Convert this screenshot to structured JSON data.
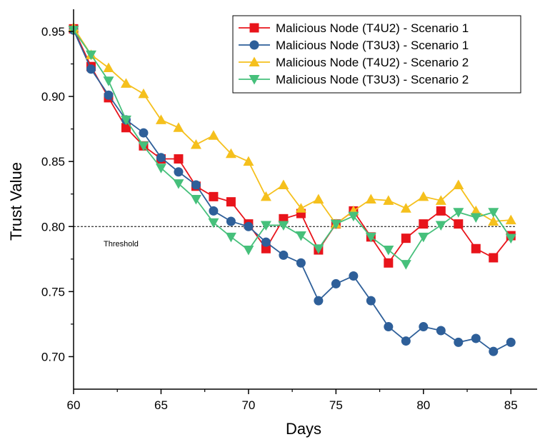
{
  "chart_data": {
    "type": "line",
    "xlabel": "Days",
    "ylabel": "Trust Value",
    "xlim": [
      60,
      86.5
    ],
    "ylim": [
      0.675,
      0.967
    ],
    "xticks": [
      60,
      65,
      70,
      75,
      80,
      85
    ],
    "yticks": [
      0.7,
      0.75,
      0.8,
      0.85,
      0.9,
      0.95
    ],
    "xtick_labels": [
      "60",
      "65",
      "70",
      "75",
      "80",
      "85"
    ],
    "ytick_labels": [
      "0.70",
      "0.75",
      "0.80",
      "0.85",
      "0.90",
      "0.95"
    ],
    "threshold": {
      "value": 0.8,
      "label": "Threshold"
    },
    "legend_position": "top-right",
    "x": [
      60,
      61,
      62,
      63,
      64,
      65,
      66,
      67,
      68,
      69,
      70,
      71,
      72,
      73,
      74,
      75,
      76,
      77,
      78,
      79,
      80,
      81,
      82,
      83,
      84,
      85
    ],
    "series": [
      {
        "name": "Malicious Node (T4U2) - Scenario 1",
        "color": "#e8141b",
        "marker": "square",
        "values": [
          0.952,
          0.923,
          0.899,
          0.876,
          0.862,
          0.852,
          0.852,
          0.831,
          0.823,
          0.819,
          0.802,
          0.783,
          0.806,
          0.81,
          0.782,
          0.802,
          0.812,
          0.792,
          0.772,
          0.791,
          0.802,
          0.812,
          0.802,
          0.783,
          0.776,
          0.793
        ]
      },
      {
        "name": "Malicious Node (T3U3) - Scenario 1",
        "color": "#2e5f99",
        "marker": "circle",
        "values": [
          0.951,
          0.921,
          0.901,
          0.882,
          0.872,
          0.853,
          0.842,
          0.832,
          0.812,
          0.804,
          0.8,
          0.788,
          0.778,
          0.772,
          0.743,
          0.756,
          0.762,
          0.743,
          0.723,
          0.712,
          0.723,
          0.72,
          0.711,
          0.714,
          0.704,
          0.711
        ]
      },
      {
        "name": "Malicious Node (T4U2) - Scenario 2",
        "color": "#f5c01d",
        "marker": "triangle-up",
        "values": [
          0.953,
          0.932,
          0.922,
          0.91,
          0.902,
          0.882,
          0.876,
          0.863,
          0.87,
          0.856,
          0.85,
          0.823,
          0.832,
          0.814,
          0.821,
          0.802,
          0.812,
          0.821,
          0.82,
          0.814,
          0.823,
          0.82,
          0.832,
          0.812,
          0.804,
          0.805
        ]
      },
      {
        "name": "Malicious Node (T3U3) - Scenario 2",
        "color": "#46c07b",
        "marker": "triangle-down",
        "values": [
          0.951,
          0.932,
          0.912,
          0.882,
          0.862,
          0.845,
          0.833,
          0.821,
          0.803,
          0.792,
          0.782,
          0.801,
          0.801,
          0.793,
          0.783,
          0.802,
          0.808,
          0.792,
          0.782,
          0.771,
          0.792,
          0.801,
          0.811,
          0.807,
          0.811,
          0.791
        ]
      }
    ]
  }
}
